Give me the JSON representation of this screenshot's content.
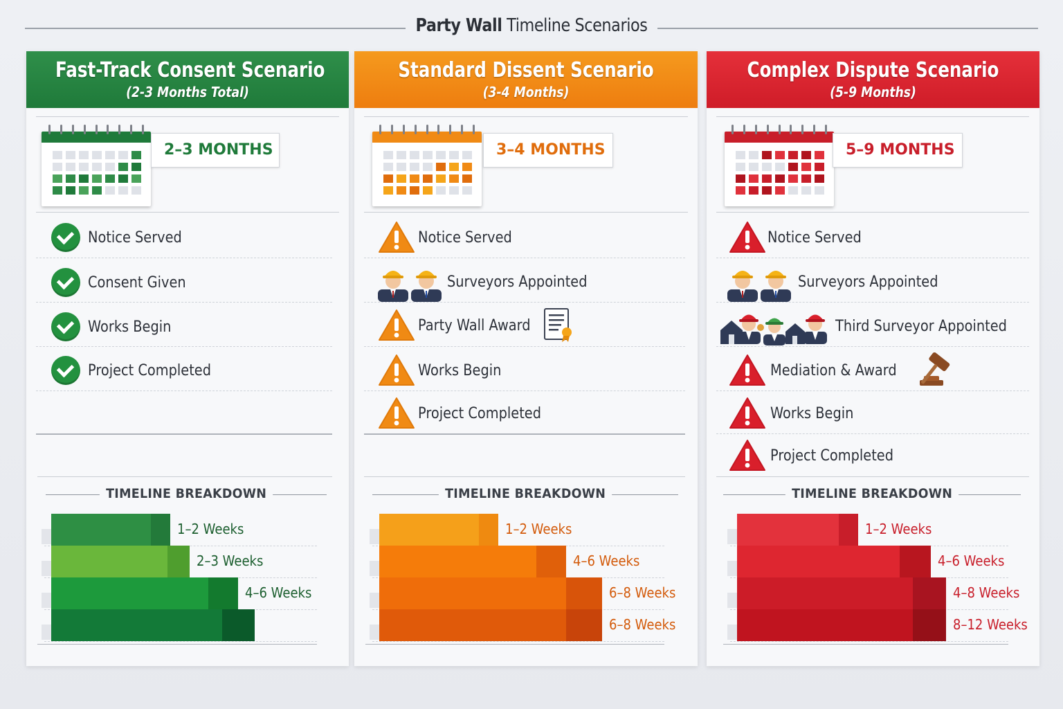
{
  "title": {
    "bold": "Party Wall",
    "rest": "Timeline Scenarios"
  },
  "colors": {
    "green": "#1f7a3a",
    "orange": "#ee7d0f",
    "red": "#cf1c28"
  },
  "scenarios": [
    {
      "name": "Fast-Track Consent Scenario",
      "subtitle": "(2-3 Months Total)",
      "duration": "2–3 MONTHS",
      "status_icon": "check-icon",
      "steps": [
        {
          "label": "Notice Served"
        },
        {
          "label": "Consent Given"
        },
        {
          "label": "Works Begin"
        },
        {
          "label": "Project Completed"
        }
      ],
      "breakdown_title": "TIMELINE BREAKDOWN",
      "breakdown": [
        {
          "label": "1–2 Weeks",
          "weeks": 1.5
        },
        {
          "label": "2–3 Weeks",
          "weeks": 2.5
        },
        {
          "label": "4–6 Weeks",
          "weeks": 5
        },
        {
          "label": "",
          "weeks": 6
        }
      ]
    },
    {
      "name": "Standard Dissent Scenario",
      "subtitle": "(3-4 Months)",
      "duration": "3–4 MONTHS",
      "status_icon": "warning-icon",
      "steps": [
        {
          "label": "Notice Served"
        },
        {
          "label": "Surveyors Appointed"
        },
        {
          "label": "Party Wall Award"
        },
        {
          "label": "Works Begin"
        },
        {
          "label": "Project Completed"
        }
      ],
      "breakdown_title": "TIMELINE BREAKDOWN",
      "breakdown": [
        {
          "label": "1–2 Weeks",
          "weeks": 1.5
        },
        {
          "label": "4–6 Weeks",
          "weeks": 5
        },
        {
          "label": "6–8 Weeks",
          "weeks": 7
        },
        {
          "label": "6–8 Weeks",
          "weeks": 7
        }
      ]
    },
    {
      "name": "Complex Dispute Scenario",
      "subtitle": "(5-9 Months)",
      "duration": "5–9 MONTHS",
      "status_icon": "warning-icon",
      "steps": [
        {
          "label": "Notice Served"
        },
        {
          "label": "Surveyors Appointed"
        },
        {
          "label": "Third Surveyor Appointed"
        },
        {
          "label": "Mediation & Award"
        },
        {
          "label": "Works Begin"
        },
        {
          "label": "Project Completed"
        }
      ],
      "breakdown_title": "TIMELINE BREAKDOWN",
      "breakdown": [
        {
          "label": "1–2 Weeks",
          "weeks": 1.5
        },
        {
          "label": "4–6 Weeks",
          "weeks": 5
        },
        {
          "label": "4–8 Weeks",
          "weeks": 6
        },
        {
          "label": "8–12 Weeks",
          "weeks": 10
        }
      ]
    }
  ]
}
